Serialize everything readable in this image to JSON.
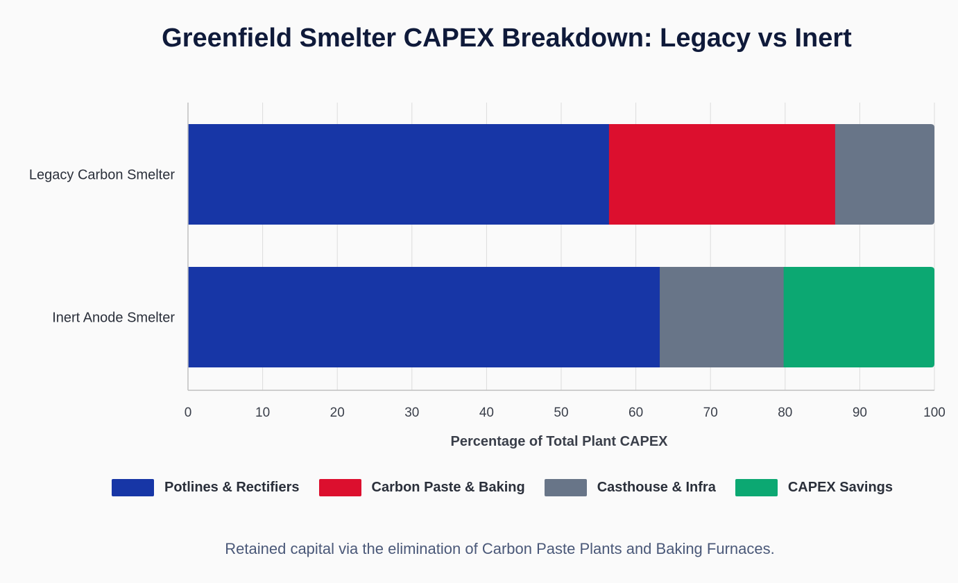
{
  "title": "Greenfield Smelter CAPEX Breakdown: Legacy vs Inert",
  "caption": "Retained capital via the elimination of Carbon Paste Plants and Baking Furnaces.",
  "chart_data": {
    "type": "bar",
    "orientation": "horizontal",
    "stacked": true,
    "title": "Greenfield Smelter CAPEX Breakdown: Legacy vs Inert",
    "xlabel": "Percentage of Total Plant CAPEX",
    "ylabel": "",
    "xlim": [
      0,
      100
    ],
    "xticks": [
      0,
      10,
      20,
      30,
      40,
      50,
      60,
      70,
      80,
      90,
      100
    ],
    "grid": true,
    "legend_position": "bottom",
    "categories": [
      "Legacy Carbon Smelter",
      "Inert Anode Smelter"
    ],
    "series": [
      {
        "name": "Potlines & Rectifiers",
        "color": "#1736a6",
        "values": [
          56.4,
          63.2
        ]
      },
      {
        "name": "Carbon Paste & Baking",
        "color": "#dc0f2e",
        "values": [
          30.3,
          0
        ]
      },
      {
        "name": "Casthouse & Infra",
        "color": "#687588",
        "values": [
          13.3,
          16.6
        ]
      },
      {
        "name": "CAPEX Savings",
        "color": "#0ca872",
        "values": [
          0,
          20.2
        ]
      }
    ]
  }
}
